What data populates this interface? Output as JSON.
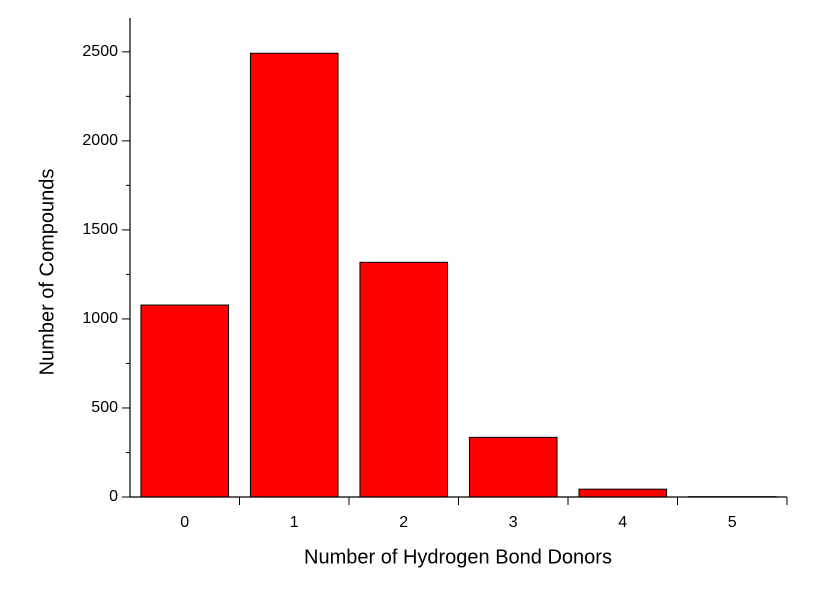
{
  "chart_data": {
    "type": "bar",
    "x_label": "Number of Hydrogen Bond Donors",
    "y_label": "Number of Compounds",
    "categories": [
      "0",
      "1",
      "2",
      "3",
      "4",
      "5"
    ],
    "values": [
      1078,
      2492,
      1318,
      335,
      44,
      2
    ],
    "color": "#ff0000",
    "ylim": [
      0,
      2690
    ],
    "yticks": [
      0,
      500,
      1000,
      1500,
      2000,
      2500
    ],
    "grid": false
  }
}
